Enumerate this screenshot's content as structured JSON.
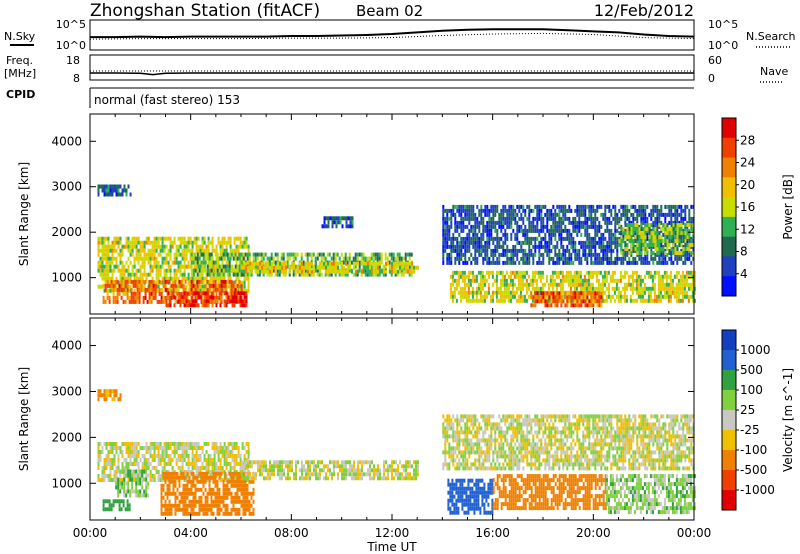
{
  "header": {
    "title": "Zhongshan Station (fitACF)",
    "beam": "Beam 02",
    "date": "12/Feb/2012",
    "nsky_label": "N.Sky",
    "freq_label_1": "Freq.",
    "freq_label_2": "[MHz]",
    "cpid_label": "CPID",
    "nsearch_label": "N.Search",
    "nave_label": "Nave",
    "cpid_text": "normal (fast stereo) 153",
    "noise_ticks_left": [
      "10^5",
      "10^0"
    ],
    "noise_ticks_right": [
      "10^5",
      "10^0"
    ],
    "freq_ticks": [
      "18",
      "8"
    ],
    "nave_ticks": [
      "60",
      "0"
    ]
  },
  "chart_data": [
    {
      "type": "line",
      "title": "",
      "ylabel": "N.Sky",
      "series": [
        {
          "name": "N.Sky",
          "x": [
            0,
            1,
            2,
            3,
            4,
            5,
            6,
            7,
            8,
            9,
            10,
            11,
            12,
            13,
            14,
            15,
            16,
            17,
            18,
            19,
            20,
            21,
            22,
            23,
            24
          ],
          "values": [
            2.1,
            2.1,
            2.2,
            2.1,
            2.2,
            2.2,
            2.2,
            2.2,
            2.3,
            2.3,
            2.4,
            2.5,
            2.7,
            3.0,
            3.3,
            3.5,
            3.6,
            3.6,
            3.6,
            3.4,
            3.2,
            3.0,
            2.6,
            2.3,
            2.2
          ]
        },
        {
          "name": "N.Search",
          "x": [
            0,
            2,
            4,
            6,
            8,
            10,
            12,
            14,
            16,
            18,
            20,
            22,
            24
          ],
          "values": [
            1.7,
            1.8,
            1.8,
            1.8,
            1.9,
            1.9,
            2.0,
            2.4,
            2.7,
            2.8,
            2.6,
            2.0,
            1.8
          ]
        }
      ]
    },
    {
      "type": "line",
      "title": "",
      "ylabel": "Freq. [MHz]",
      "series": [
        {
          "name": "Freq.",
          "x": [
            0,
            1,
            2,
            2.5,
            3,
            4,
            6,
            8,
            12,
            16,
            20,
            24
          ],
          "values": [
            10.4,
            10.4,
            10.3,
            9.6,
            10.3,
            10.4,
            10.4,
            10.4,
            10.4,
            10.4,
            10.4,
            10.4
          ]
        }
      ]
    },
    {
      "type": "heatmap",
      "title": "",
      "xlabel": "Time UT",
      "ylabel": "Slant Range [km]",
      "colorbar_label": "Power [dB]",
      "colorbar_ticks": [
        "28",
        "24",
        "20",
        "16",
        "12",
        "8",
        "4"
      ],
      "colorbar_colors": [
        "#e00000",
        "#f04000",
        "#f08000",
        "#f0c000",
        "#c8dc00",
        "#30b050",
        "#206a50",
        "#2040c0",
        "#0010ff"
      ],
      "xlim": [
        0,
        24
      ],
      "ylim": [
        200,
        4600
      ],
      "yticks": [
        1000,
        2000,
        3000,
        4000
      ],
      "xticks": [
        "00:00",
        "04:00",
        "08:00",
        "12:00",
        "16:00",
        "20:00",
        "00:00"
      ],
      "bands": [
        {
          "t0": 0.3,
          "t1": 6.3,
          "r0": 700,
          "r1": 1900,
          "value": 16
        },
        {
          "t0": 0.5,
          "t1": 6.0,
          "r0": 450,
          "r1": 950,
          "value": 24
        },
        {
          "t0": 3.0,
          "t1": 6.2,
          "r0": 380,
          "r1": 700,
          "value": 27
        },
        {
          "t0": 0.3,
          "t1": 1.6,
          "r0": 2850,
          "r1": 3050,
          "value": 6
        },
        {
          "t0": 4.0,
          "t1": 12.8,
          "r0": 1050,
          "r1": 1550,
          "value": 12
        },
        {
          "t0": 6.0,
          "t1": 13.0,
          "r0": 1150,
          "r1": 1350,
          "value": 17
        },
        {
          "t0": 9.2,
          "t1": 10.4,
          "r0": 2150,
          "r1": 2350,
          "value": 5
        },
        {
          "t0": 14.3,
          "t1": 24.0,
          "r0": 450,
          "r1": 1150,
          "value": 16
        },
        {
          "t0": 17.5,
          "t1": 20.3,
          "r0": 400,
          "r1": 700,
          "value": 25
        },
        {
          "t0": 14.0,
          "t1": 24.0,
          "r0": 1300,
          "r1": 2600,
          "value": 5
        },
        {
          "t0": 21.0,
          "t1": 24.0,
          "r0": 1500,
          "r1": 2200,
          "value": 13
        }
      ]
    },
    {
      "type": "heatmap",
      "title": "",
      "xlabel": "Time UT",
      "ylabel": "Slant Range [km]",
      "colorbar_label": "Velocity [m s^-1]",
      "colorbar_ticks": [
        "1000",
        "500",
        "100",
        "25",
        "-25",
        "-100",
        "-500",
        "-1000"
      ],
      "colorbar_colors": [
        "#1040c0",
        "#2060d0",
        "#30a040",
        "#80d040",
        "#c8c8c0",
        "#f0c000",
        "#f08000",
        "#f04000",
        "#e00000"
      ],
      "xlim": [
        0,
        24
      ],
      "ylim": [
        200,
        4600
      ],
      "yticks": [
        1000,
        2000,
        3000,
        4000
      ],
      "xticks": [
        "00:00",
        "04:00",
        "08:00",
        "12:00",
        "16:00",
        "20:00",
        "00:00"
      ],
      "bands": [
        {
          "t0": 0.3,
          "t1": 6.3,
          "r0": 1100,
          "r1": 1900,
          "value": 0
        },
        {
          "t0": 2.8,
          "t1": 6.5,
          "r0": 350,
          "r1": 1250,
          "value": -300
        },
        {
          "t0": 1.0,
          "t1": 2.3,
          "r0": 700,
          "r1": 1300,
          "value": 60
        },
        {
          "t0": 6.0,
          "t1": 13.0,
          "r0": 1100,
          "r1": 1500,
          "value": 0
        },
        {
          "t0": 0.3,
          "t1": 1.2,
          "r0": 2850,
          "r1": 3050,
          "value": -150
        },
        {
          "t0": 14.2,
          "t1": 16.0,
          "r0": 400,
          "r1": 1100,
          "value": 600
        },
        {
          "t0": 16.0,
          "t1": 20.5,
          "r0": 500,
          "r1": 1200,
          "value": -300
        },
        {
          "t0": 14.0,
          "t1": 24.0,
          "r0": 1300,
          "r1": 2500,
          "value": 0
        },
        {
          "t0": 20.5,
          "t1": 24.0,
          "r0": 400,
          "r1": 1200,
          "value": 50
        },
        {
          "t0": 0.5,
          "t1": 1.6,
          "r0": 450,
          "r1": 650,
          "value": 200
        }
      ]
    }
  ]
}
